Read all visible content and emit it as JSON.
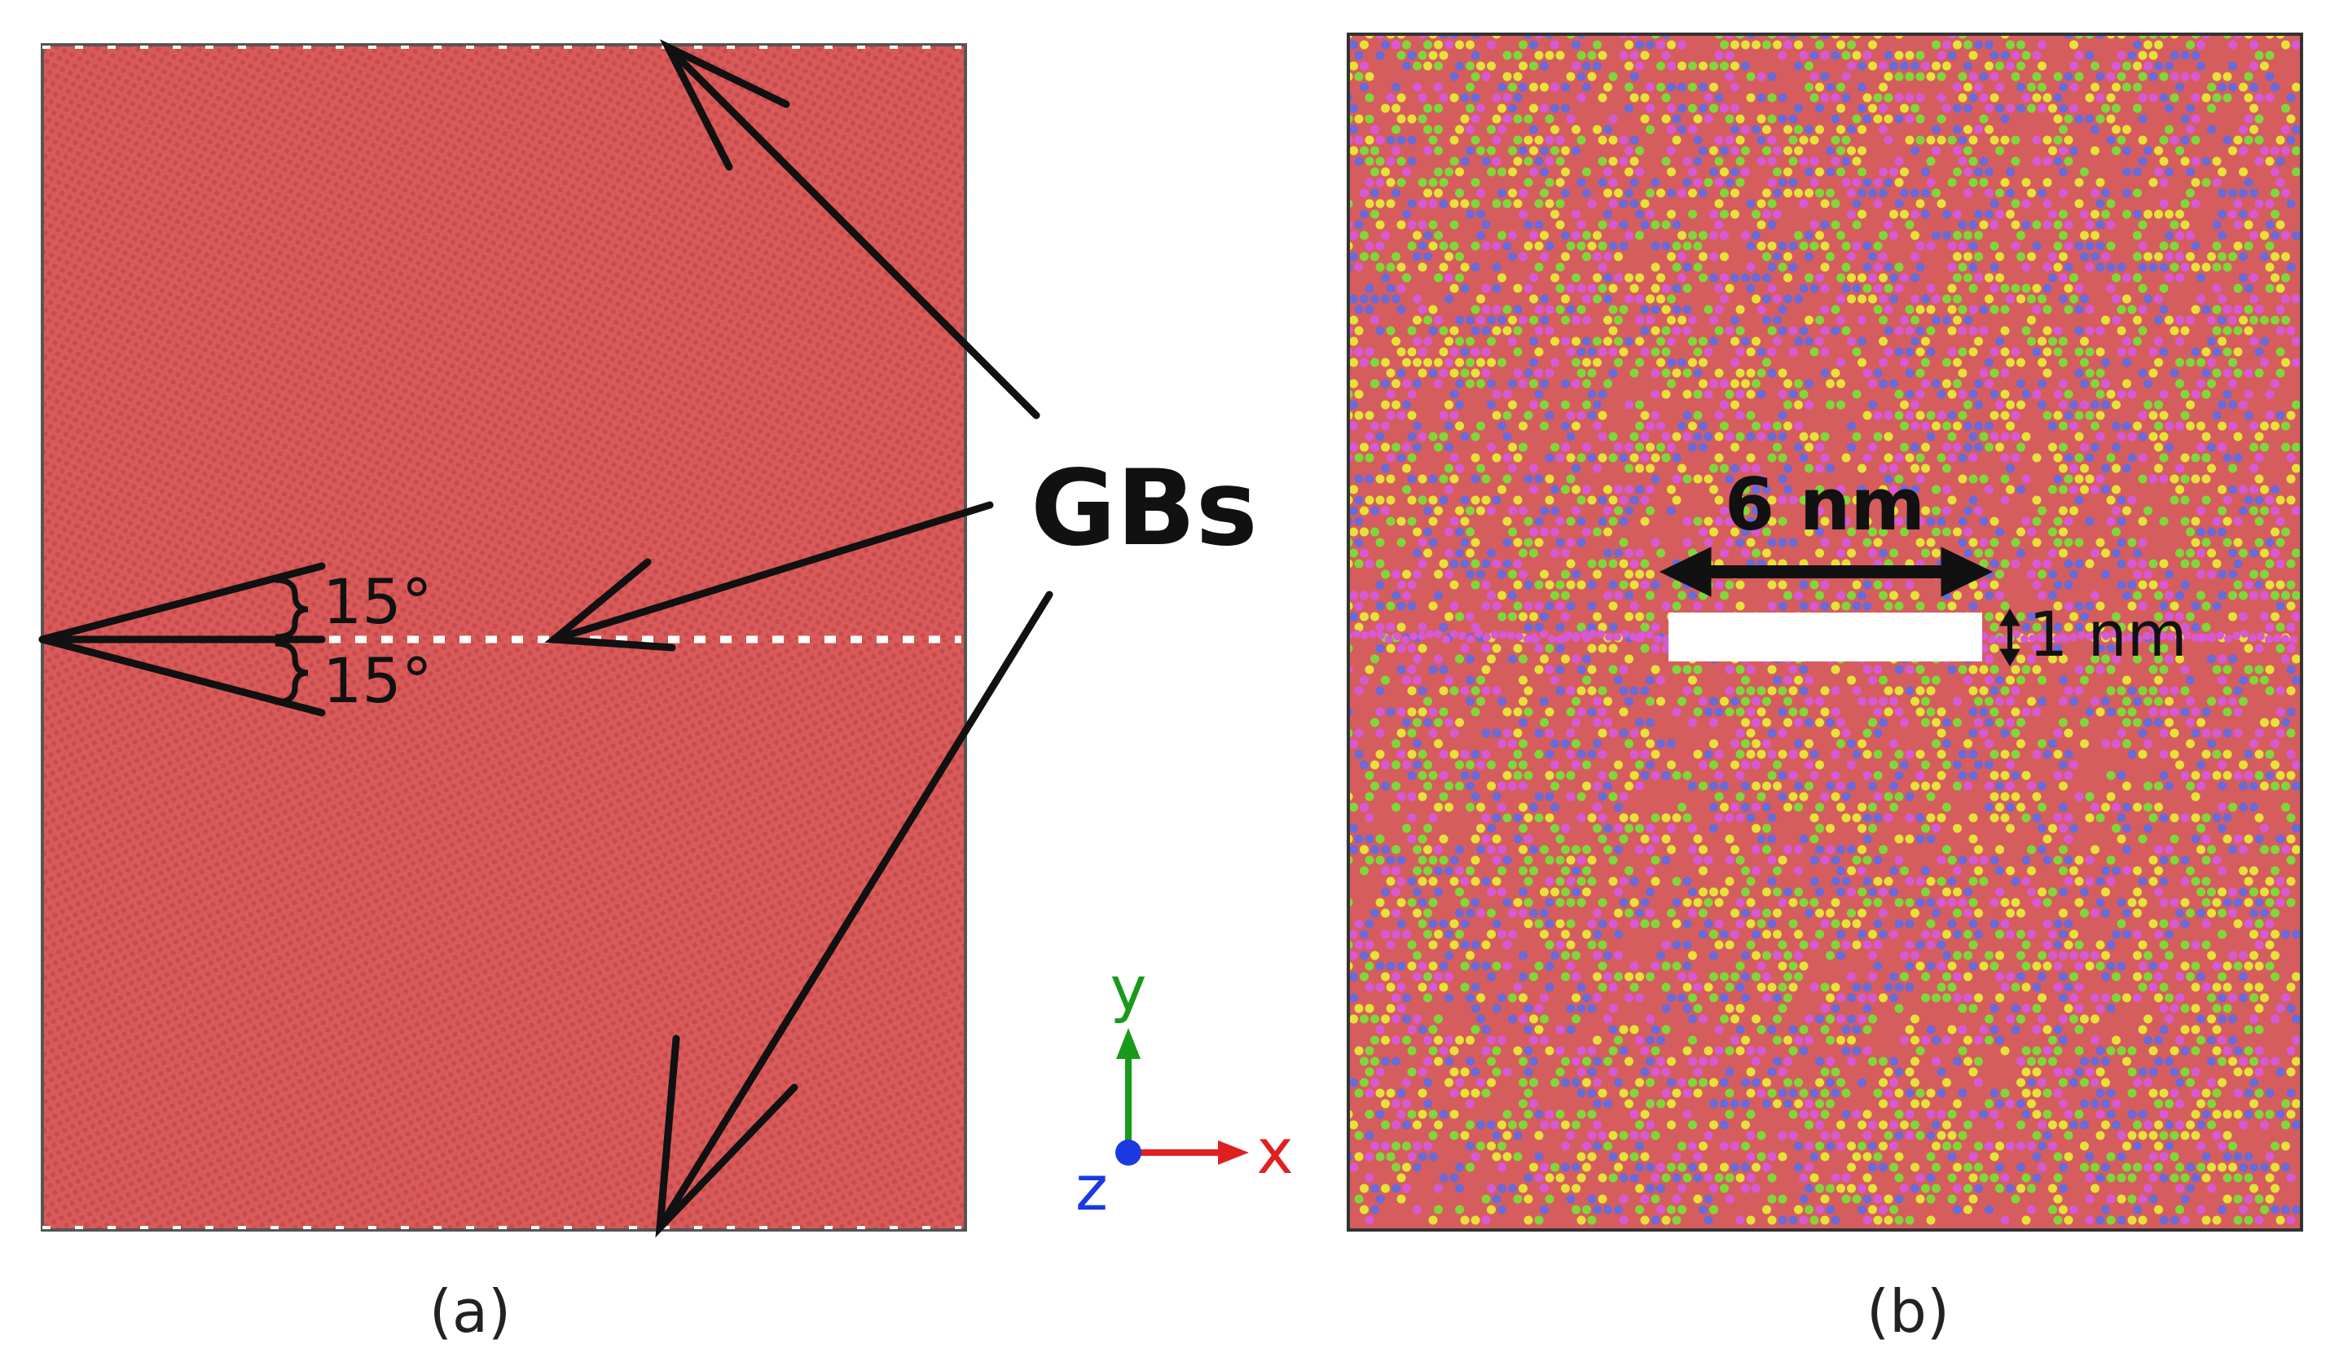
{
  "panel_a": {
    "caption": "(a)",
    "gb_label": "GBs",
    "angle_top": "15°",
    "angle_bottom": "15°"
  },
  "panel_b": {
    "caption": "(b)",
    "crack_length": "6 nm",
    "crack_height": "1 nm"
  },
  "axes": {
    "y_label": "y",
    "x_label": "x",
    "z_label": "z"
  },
  "colors": {
    "grain_fill": "#d85a5a",
    "atom_red": "#d65d5d",
    "atom_green": "#7fd83a",
    "atom_yellow": "#e6e23a",
    "atom_blue": "#6a6ad8",
    "atom_magenta": "#d65ad6",
    "axis_y": "#1a9a1a",
    "axis_x": "#e02020",
    "axis_z": "#1a3ae0",
    "arrow": "#111111",
    "crack": "#ffffff"
  }
}
